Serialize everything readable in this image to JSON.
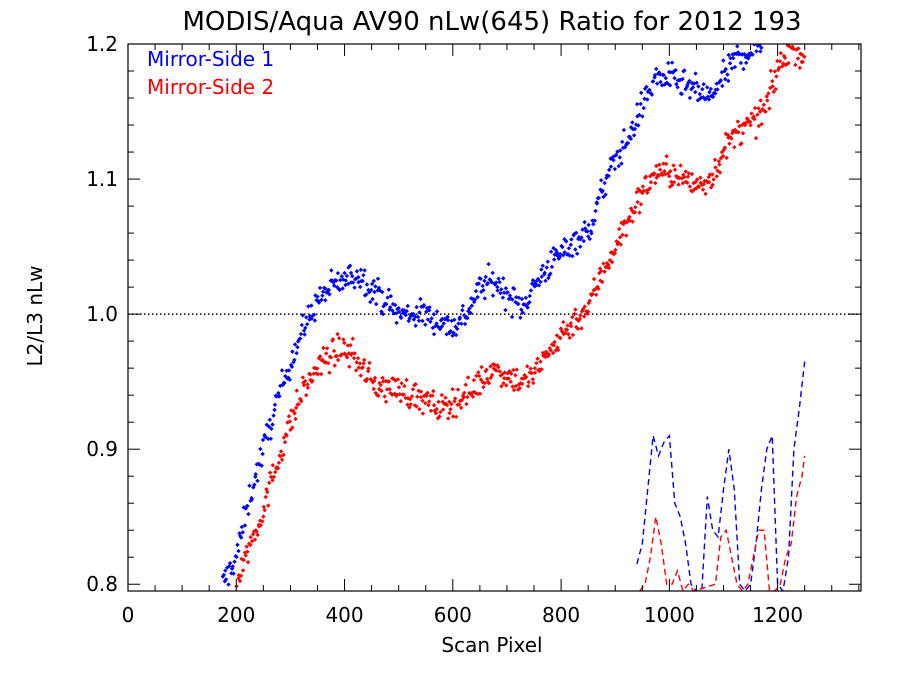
{
  "chart_data": {
    "type": "scatter",
    "title": "MODIS/Aqua AV90 nLw(645) Ratio for 2012 193",
    "xlabel": "Scan Pixel",
    "ylabel": "L2/L3 nLw",
    "xlim": [
      0,
      1354
    ],
    "ylim": [
      0.795,
      1.2
    ],
    "x_ticks": [
      "0",
      "200",
      "400",
      "600",
      "800",
      "1000",
      "1200"
    ],
    "y_ticks": [
      "0.8",
      "0.9",
      "1.0",
      "1.1",
      "1.2"
    ],
    "reference_line": {
      "y": 1.0,
      "style": "dotted",
      "color": "#000000"
    },
    "legend": {
      "position": "top-left"
    },
    "series": [
      {
        "name": "Mirror-Side 1",
        "color": "#0000ff",
        "marker": "diamond",
        "trend": [
          [
            175,
            0.8
          ],
          [
            200,
            0.82
          ],
          [
            225,
            0.865
          ],
          [
            250,
            0.9
          ],
          [
            275,
            0.935
          ],
          [
            300,
            0.965
          ],
          [
            325,
            0.99
          ],
          [
            350,
            1.01
          ],
          [
            375,
            1.02
          ],
          [
            400,
            1.025
          ],
          [
            425,
            1.03
          ],
          [
            450,
            1.02
          ],
          [
            475,
            1.01
          ],
          [
            500,
            1.0
          ],
          [
            525,
            1.0
          ],
          [
            550,
            1.0
          ],
          [
            575,
            0.995
          ],
          [
            600,
            0.99
          ],
          [
            625,
            1.0
          ],
          [
            650,
            1.02
          ],
          [
            675,
            1.025
          ],
          [
            700,
            1.015
          ],
          [
            725,
            1.005
          ],
          [
            750,
            1.02
          ],
          [
            775,
            1.035
          ],
          [
            800,
            1.045
          ],
          [
            825,
            1.055
          ],
          [
            850,
            1.06
          ],
          [
            875,
            1.09
          ],
          [
            900,
            1.115
          ],
          [
            925,
            1.13
          ],
          [
            950,
            1.155
          ],
          [
            975,
            1.175
          ],
          [
            1000,
            1.175
          ],
          [
            1025,
            1.17
          ],
          [
            1050,
            1.165
          ],
          [
            1075,
            1.16
          ],
          [
            1100,
            1.175
          ],
          [
            1125,
            1.19
          ],
          [
            1150,
            1.195
          ],
          [
            1170,
            1.2
          ]
        ],
        "dashed_line": {
          "x": [
            940,
            950,
            960,
            970,
            980,
            990,
            1000,
            1010,
            1020,
            1030,
            1040,
            1050,
            1060,
            1070,
            1080,
            1090,
            1100,
            1110,
            1120,
            1130,
            1140,
            1150,
            1160,
            1170,
            1180,
            1190,
            1200,
            1210,
            1220,
            1230,
            1240,
            1250
          ],
          "y": [
            0.815,
            0.83,
            0.87,
            0.91,
            0.895,
            0.905,
            0.91,
            0.86,
            0.85,
            0.83,
            0.8,
            0.795,
            0.795,
            0.865,
            0.84,
            0.835,
            0.87,
            0.9,
            0.87,
            0.8,
            0.795,
            0.8,
            0.83,
            0.87,
            0.9,
            0.91,
            0.8,
            0.795,
            0.82,
            0.9,
            0.93,
            0.965
          ]
        }
      },
      {
        "name": "Mirror-Side 2",
        "color": "#ff0000",
        "marker": "diamond",
        "trend": [
          [
            200,
            0.8
          ],
          [
            225,
            0.83
          ],
          [
            250,
            0.855
          ],
          [
            275,
            0.89
          ],
          [
            300,
            0.92
          ],
          [
            325,
            0.945
          ],
          [
            350,
            0.96
          ],
          [
            375,
            0.97
          ],
          [
            400,
            0.975
          ],
          [
            425,
            0.965
          ],
          [
            450,
            0.95
          ],
          [
            475,
            0.945
          ],
          [
            500,
            0.945
          ],
          [
            525,
            0.94
          ],
          [
            550,
            0.935
          ],
          [
            575,
            0.93
          ],
          [
            600,
            0.935
          ],
          [
            625,
            0.94
          ],
          [
            650,
            0.95
          ],
          [
            675,
            0.96
          ],
          [
            700,
            0.955
          ],
          [
            725,
            0.95
          ],
          [
            750,
            0.955
          ],
          [
            775,
            0.97
          ],
          [
            800,
            0.985
          ],
          [
            825,
            0.995
          ],
          [
            850,
            1.005
          ],
          [
            875,
            1.03
          ],
          [
            900,
            1.05
          ],
          [
            925,
            1.07
          ],
          [
            950,
            1.09
          ],
          [
            975,
            1.105
          ],
          [
            1000,
            1.105
          ],
          [
            1025,
            1.1
          ],
          [
            1050,
            1.095
          ],
          [
            1075,
            1.1
          ],
          [
            1100,
            1.12
          ],
          [
            1125,
            1.135
          ],
          [
            1150,
            1.14
          ],
          [
            1175,
            1.15
          ],
          [
            1200,
            1.18
          ],
          [
            1225,
            1.2
          ],
          [
            1250,
            1.19
          ]
        ],
        "dashed_line": {
          "x": [
            945,
            955,
            965,
            975,
            985,
            995,
            1005,
            1015,
            1025,
            1035,
            1045,
            1085,
            1095,
            1105,
            1115,
            1125,
            1135,
            1145,
            1155,
            1165,
            1175,
            1185,
            1195,
            1205,
            1215,
            1225,
            1235,
            1245,
            1250
          ],
          "y": [
            0.795,
            0.8,
            0.82,
            0.85,
            0.83,
            0.8,
            0.8,
            0.81,
            0.795,
            0.8,
            0.795,
            0.8,
            0.835,
            0.84,
            0.82,
            0.8,
            0.795,
            0.8,
            0.82,
            0.84,
            0.84,
            0.795,
            0.795,
            0.8,
            0.82,
            0.83,
            0.865,
            0.88,
            0.895
          ]
        }
      }
    ]
  }
}
